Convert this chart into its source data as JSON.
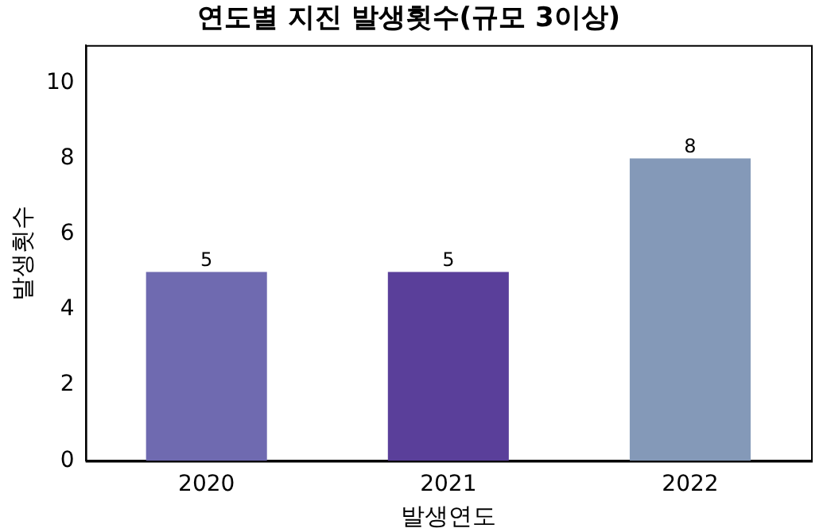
{
  "chart_data": {
    "type": "bar",
    "title": "연도별 지진 발생횟수(규모 3이상)",
    "xlabel": "발생연도",
    "ylabel": "발생횟수",
    "categories": [
      "2020",
      "2021",
      "2022"
    ],
    "values": [
      5,
      5,
      8
    ],
    "colors": [
      "#6f6ab0",
      "#5a3f9a",
      "#8499b8"
    ],
    "ylim": [
      0,
      11
    ],
    "yticks": [
      0,
      2,
      4,
      6,
      8,
      10
    ],
    "grid": false,
    "legend": false,
    "data_labels": true
  }
}
